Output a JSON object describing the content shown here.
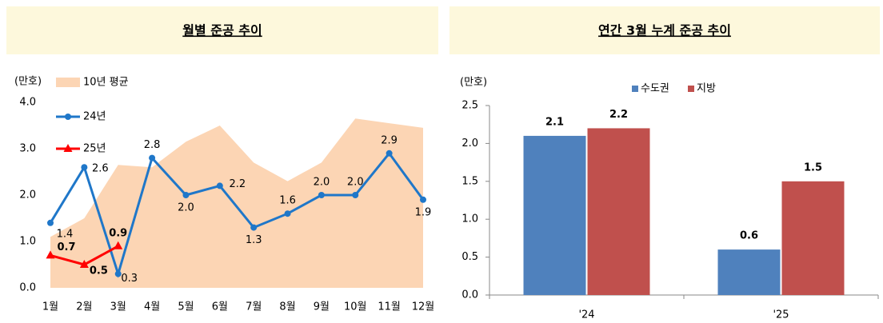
{
  "chart_data": [
    {
      "type": "line",
      "title": "월별 준공 추이",
      "y_label": "(만호)",
      "categories": [
        "1월",
        "2월",
        "3월",
        "4월",
        "5월",
        "6월",
        "7월",
        "8월",
        "9월",
        "10월",
        "11월",
        "12월"
      ],
      "ylim": [
        0,
        4
      ],
      "yticks": [
        {
          "value": 0,
          "label": "0.0"
        },
        {
          "value": 1,
          "label": "1.0"
        },
        {
          "value": 2,
          "label": "2.0"
        },
        {
          "value": 3,
          "label": "3.0"
        },
        {
          "value": 4,
          "label": "4.0"
        }
      ],
      "series": [
        {
          "name": "10년 평균",
          "type": "area",
          "color": "#fcd5b4",
          "values": [
            1.1,
            1.5,
            2.65,
            2.6,
            3.15,
            3.5,
            2.7,
            2.3,
            2.7,
            3.65,
            3.55,
            3.45
          ]
        },
        {
          "name": "24년",
          "type": "line",
          "color": "#1f77c9",
          "values": [
            1.4,
            2.6,
            0.3,
            2.8,
            2.0,
            2.2,
            1.3,
            1.6,
            2.0,
            2.0,
            2.9,
            1.9
          ],
          "value_labels": [
            "1.4",
            "2.6",
            "0.3",
            "2.8",
            "2.0",
            "2.2",
            "1.3",
            "1.6",
            "2.0",
            "2.0",
            "2.9",
            "1.9"
          ]
        },
        {
          "name": "25년",
          "type": "line",
          "color": "#ff0000",
          "values": [
            0.7,
            0.5,
            0.9,
            null,
            null,
            null,
            null,
            null,
            null,
            null,
            null,
            null
          ],
          "value_labels": [
            "0.7",
            "0.5",
            "0.9",
            null,
            null,
            null,
            null,
            null,
            null,
            null,
            null,
            null
          ]
        }
      ]
    },
    {
      "type": "bar",
      "title": "연간 3월 누계 준공 추이",
      "y_label": "(만호)",
      "categories": [
        "'24",
        "'25"
      ],
      "ylim": [
        0,
        2.5
      ],
      "yticks": [
        {
          "value": 0,
          "label": "0.0"
        },
        {
          "value": 0.5,
          "label": "0.5"
        },
        {
          "value": 1,
          "label": "1.0"
        },
        {
          "value": 1.5,
          "label": "1.5"
        },
        {
          "value": 2,
          "label": "2.0"
        },
        {
          "value": 2.5,
          "label": "2.5"
        }
      ],
      "series": [
        {
          "name": "수도권",
          "color": "#4f81bd",
          "values": [
            2.1,
            0.6
          ],
          "value_labels": [
            "2.1",
            "0.6"
          ]
        },
        {
          "name": "지방",
          "color": "#c0504d",
          "values": [
            2.2,
            1.5
          ],
          "value_labels": [
            "2.2",
            "1.5"
          ]
        }
      ]
    }
  ]
}
